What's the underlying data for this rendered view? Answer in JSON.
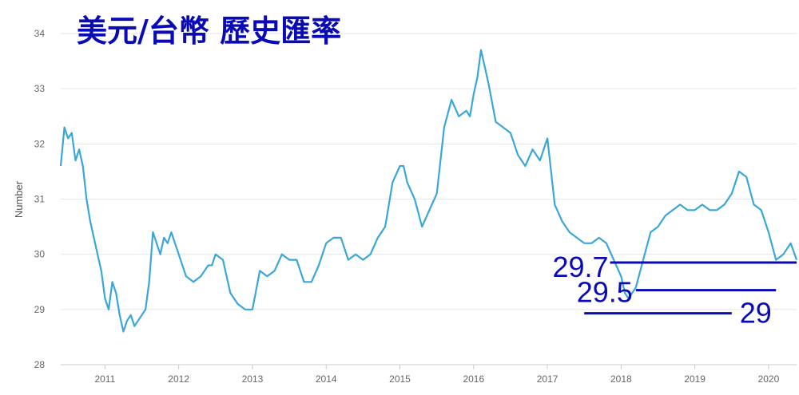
{
  "chart_data": {
    "type": "line",
    "title": "美元/台幣 歷史匯率",
    "ylabel": "Number",
    "xlabel": "",
    "xlim": [
      2010.4,
      2020.38
    ],
    "ylim": [
      28,
      34
    ],
    "yticks": [
      28,
      29,
      30,
      31,
      32,
      33,
      34
    ],
    "xticks": [
      2011,
      2012,
      2013,
      2014,
      2015,
      2016,
      2017,
      2018,
      2019,
      2020
    ],
    "grid": "horizontal",
    "line_color": "#3aa7d6",
    "annotation_color": "#0b0bb5",
    "series": [
      {
        "x": [
          2010.4,
          2010.45,
          2010.5,
          2010.55,
          2010.6,
          2010.65,
          2010.7,
          2010.75,
          2010.8,
          2010.85,
          2010.9,
          2010.95,
          2011.0,
          2011.05,
          2011.1,
          2011.15,
          2011.2,
          2011.25,
          2011.3,
          2011.35,
          2011.4,
          2011.45,
          2011.5,
          2011.55,
          2011.6,
          2011.65,
          2011.7,
          2011.75,
          2011.8,
          2011.85,
          2011.9,
          2011.95,
          2012.0,
          2012.1,
          2012.2,
          2012.3,
          2012.4,
          2012.45,
          2012.5,
          2012.6,
          2012.7,
          2012.8,
          2012.9,
          2013.0,
          2013.1,
          2013.2,
          2013.3,
          2013.4,
          2013.5,
          2013.6,
          2013.7,
          2013.8,
          2013.9,
          2014.0,
          2014.1,
          2014.2,
          2014.3,
          2014.4,
          2014.5,
          2014.6,
          2014.7,
          2014.8,
          2014.9,
          2015.0,
          2015.05,
          2015.1,
          2015.2,
          2015.3,
          2015.4,
          2015.5,
          2015.6,
          2015.7,
          2015.8,
          2015.9,
          2015.95,
          2016.0,
          2016.05,
          2016.1,
          2016.2,
          2016.3,
          2016.4,
          2016.5,
          2016.6,
          2016.7,
          2016.8,
          2016.9,
          2017.0,
          2017.1,
          2017.2,
          2017.3,
          2017.4,
          2017.5,
          2017.6,
          2017.7,
          2017.8,
          2017.9,
          2018.0,
          2018.05,
          2018.1,
          2018.15,
          2018.2,
          2018.3,
          2018.4,
          2018.5,
          2018.6,
          2018.7,
          2018.8,
          2018.9,
          2019.0,
          2019.1,
          2019.2,
          2019.3,
          2019.4,
          2019.5,
          2019.6,
          2019.7,
          2019.8,
          2019.9,
          2020.0,
          2020.1,
          2020.2,
          2020.3,
          2020.38
        ],
        "y": [
          31.6,
          32.3,
          32.1,
          32.2,
          31.7,
          31.9,
          31.6,
          31.0,
          30.6,
          30.3,
          30.0,
          29.7,
          29.2,
          29.0,
          29.5,
          29.3,
          28.9,
          28.6,
          28.8,
          28.9,
          28.7,
          28.8,
          28.9,
          29.0,
          29.5,
          30.4,
          30.2,
          30.0,
          30.3,
          30.2,
          30.4,
          30.2,
          30.0,
          29.6,
          29.5,
          29.6,
          29.8,
          29.8,
          30.0,
          29.9,
          29.3,
          29.1,
          29.0,
          29.0,
          29.7,
          29.6,
          29.7,
          30.0,
          29.9,
          29.9,
          29.5,
          29.5,
          29.8,
          30.2,
          30.3,
          30.3,
          29.9,
          30.0,
          29.9,
          30.0,
          30.3,
          30.5,
          31.3,
          31.6,
          31.6,
          31.3,
          31.0,
          30.5,
          30.8,
          31.1,
          32.3,
          32.8,
          32.5,
          32.6,
          32.5,
          32.9,
          33.2,
          33.7,
          33.1,
          32.4,
          32.3,
          32.2,
          31.8,
          31.6,
          31.9,
          31.7,
          32.1,
          30.9,
          30.6,
          30.4,
          30.3,
          30.2,
          30.2,
          30.3,
          30.2,
          29.9,
          29.6,
          29.3,
          29.2,
          29.3,
          29.4,
          29.9,
          30.4,
          30.5,
          30.7,
          30.8,
          30.9,
          30.8,
          30.8,
          30.9,
          30.8,
          30.8,
          30.9,
          31.1,
          31.5,
          31.4,
          30.9,
          30.8,
          30.4,
          29.9,
          30.0,
          30.2,
          29.9
        ]
      }
    ],
    "annotations": [
      {
        "label": "29.7",
        "y": 29.85,
        "x_start": 2017.85,
        "x_end": 2020.38
      },
      {
        "label": "29.5",
        "y": 29.35,
        "x_start": 2018.2,
        "x_end": 2020.1
      },
      {
        "label": "29",
        "y": 28.93,
        "x_start": 2017.5,
        "x_end": 2019.5
      }
    ]
  }
}
